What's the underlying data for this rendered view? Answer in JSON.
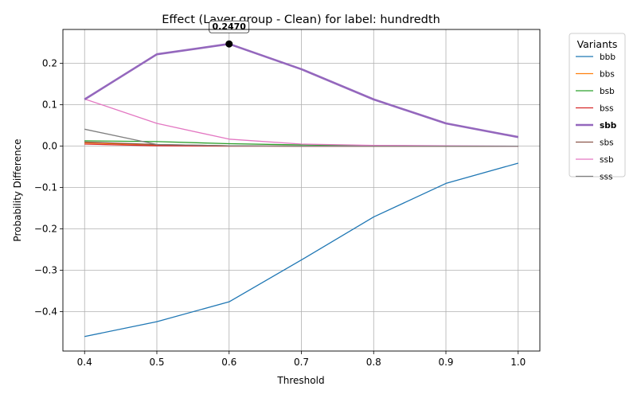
{
  "chart_data": {
    "type": "line",
    "title": "Effect (Layer group - Clean) for label: hundredth",
    "xlabel": "Threshold",
    "ylabel": "Probability Difference",
    "x": [
      0.4,
      0.5,
      0.6,
      0.7,
      0.8,
      0.9,
      1.0
    ],
    "xlim": [
      0.37,
      1.03
    ],
    "ylim": [
      -0.495,
      0.282
    ],
    "xticks": [
      0.4,
      0.5,
      0.6,
      0.7,
      0.8,
      0.9,
      1.0
    ],
    "xtick_labels": [
      "0.4",
      "0.5",
      "0.6",
      "0.7",
      "0.8",
      "0.9",
      "1.0"
    ],
    "yticks": [
      -0.4,
      -0.3,
      -0.2,
      -0.1,
      0.0,
      0.1,
      0.2
    ],
    "ytick_labels": [
      "−0.4",
      "−0.3",
      "−0.2",
      "−0.1",
      "0.0",
      "0.1",
      "0.2"
    ],
    "grid": true,
    "legend_title": "Variants",
    "legend_position": "outside-right",
    "highlighted_series": "sbb",
    "annotation": {
      "x": 0.6,
      "y": 0.247,
      "text": "0.2470"
    },
    "series": [
      {
        "name": "bbb",
        "color": "#1f77b4",
        "values": [
          -0.46,
          -0.424,
          -0.376,
          -0.275,
          -0.171,
          -0.09,
          -0.041
        ]
      },
      {
        "name": "bbs",
        "color": "#ff7f0e",
        "values": [
          0.008,
          0.003,
          0.001,
          0.0,
          0.0,
          0.0,
          0.0
        ]
      },
      {
        "name": "bsb",
        "color": "#2ca02c",
        "values": [
          0.013,
          0.011,
          0.006,
          0.003,
          0.001,
          0.0,
          0.0
        ]
      },
      {
        "name": "bss",
        "color": "#d62728",
        "values": [
          0.005,
          0.001,
          0.0,
          0.0,
          0.0,
          0.0,
          0.0
        ]
      },
      {
        "name": "sbb",
        "color": "#9467bd",
        "values": [
          0.113,
          0.222,
          0.247,
          0.186,
          0.113,
          0.055,
          0.022
        ]
      },
      {
        "name": "sbs",
        "color": "#8c564b",
        "values": [
          0.01,
          0.004,
          0.001,
          0.0,
          0.0,
          0.0,
          0.0
        ]
      },
      {
        "name": "ssb",
        "color": "#e377c2",
        "values": [
          0.114,
          0.055,
          0.017,
          0.005,
          0.002,
          0.001,
          0.0
        ]
      },
      {
        "name": "sss",
        "color": "#7f7f7f",
        "values": [
          0.041,
          0.004,
          0.001,
          0.0,
          0.0,
          0.0,
          0.0
        ]
      }
    ]
  }
}
